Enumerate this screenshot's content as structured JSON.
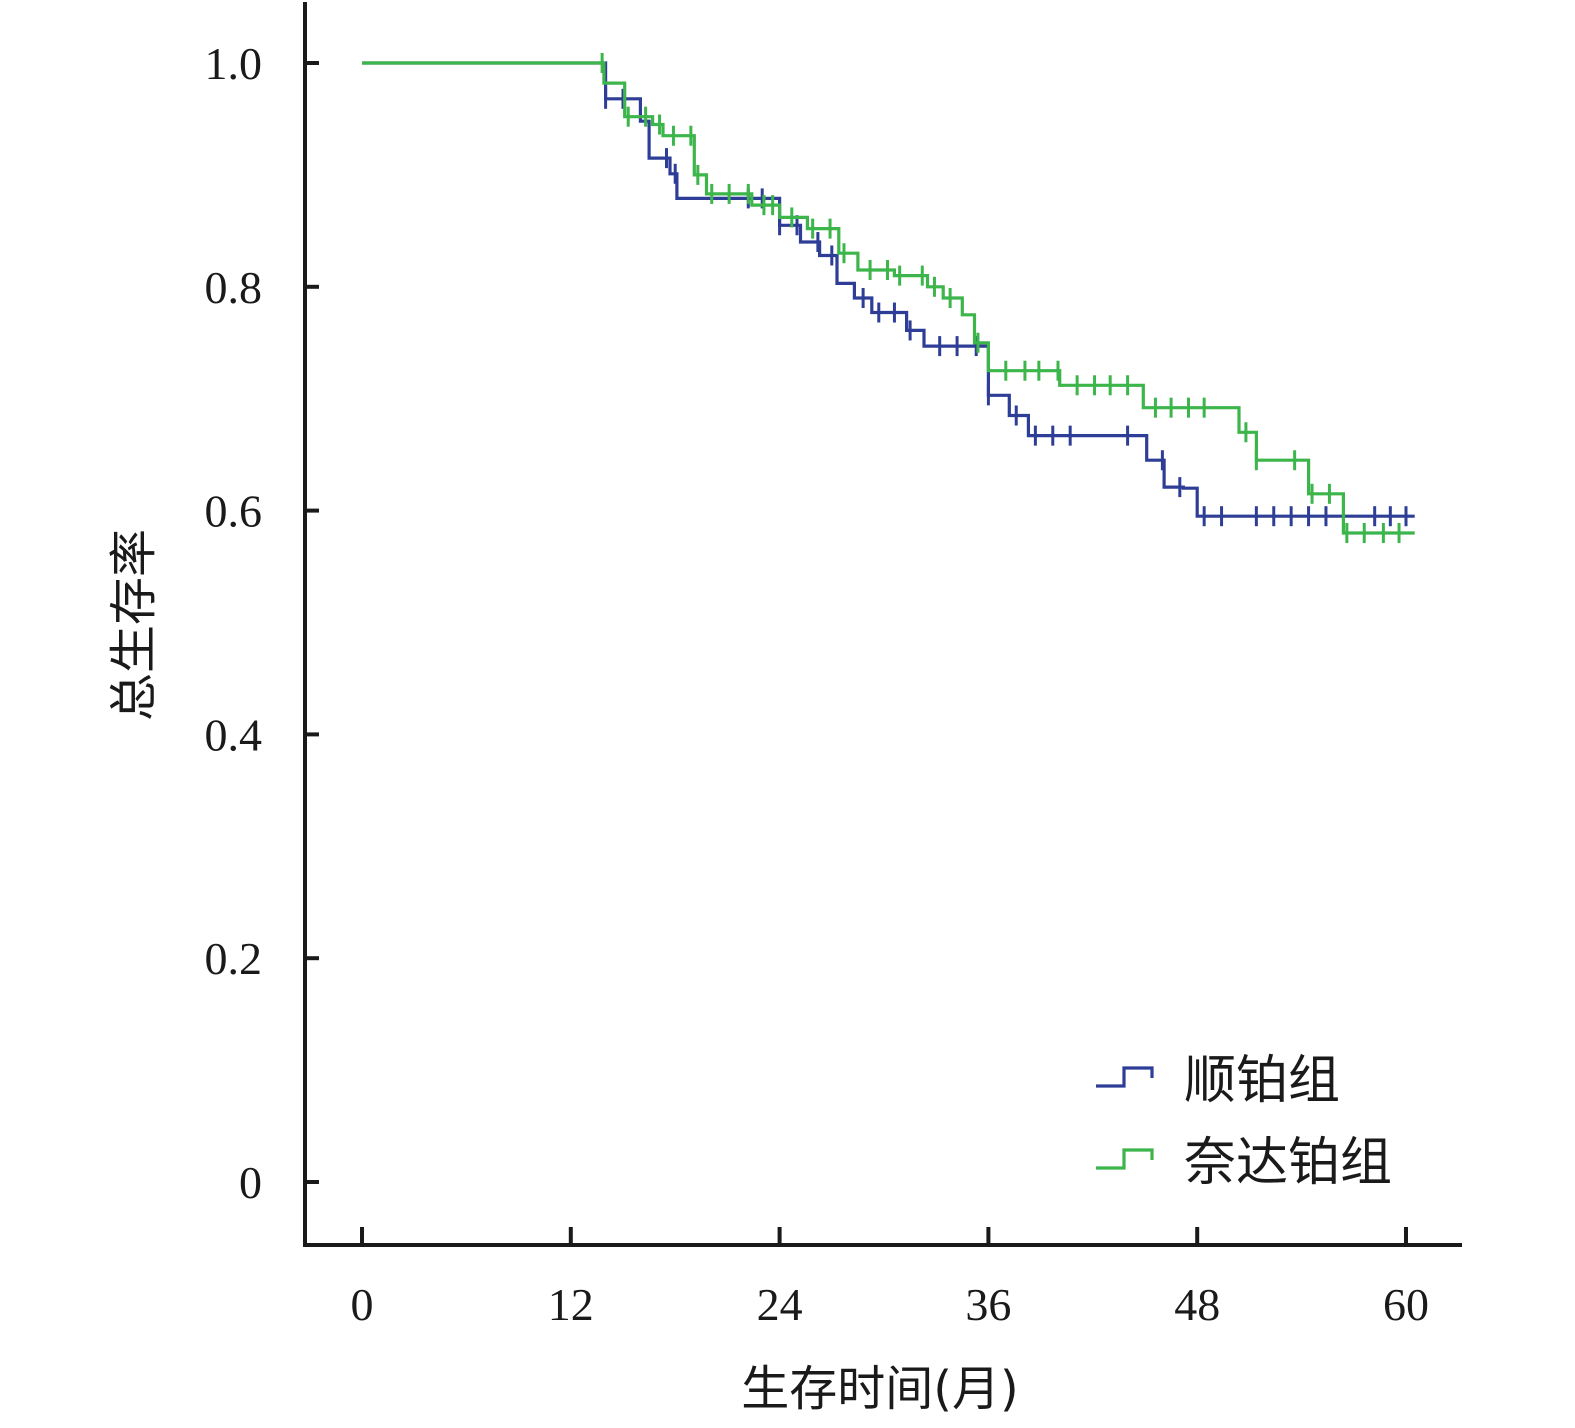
{
  "chart_data": {
    "type": "line",
    "step": true,
    "xlabel": "生存时间(月)",
    "ylabel": "总生存率",
    "xlim": [
      0,
      60
    ],
    "ylim": [
      0,
      1.0
    ],
    "x_ticks": [
      0,
      12,
      24,
      36,
      48,
      60
    ],
    "y_ticks": [
      0,
      0.2,
      0.4,
      0.6,
      0.8,
      1.0
    ],
    "x_tick_labels": [
      "0",
      "12",
      "24",
      "36",
      "48",
      "60"
    ],
    "y_tick_labels": [
      "0",
      "0.2",
      "0.4",
      "0.6",
      "0.8",
      "1.0"
    ],
    "grid": false,
    "legend_position": "bottom-right",
    "series": [
      {
        "name": "顺铂组",
        "color": "#2e3d96",
        "points": [
          [
            0,
            1.0
          ],
          [
            14,
            1.0
          ],
          [
            14,
            0.968
          ],
          [
            16,
            0.968
          ],
          [
            16,
            0.948
          ],
          [
            16.5,
            0.948
          ],
          [
            16.5,
            0.915
          ],
          [
            17.7,
            0.915
          ],
          [
            17.7,
            0.901
          ],
          [
            18.1,
            0.901
          ],
          [
            18.1,
            0.879
          ],
          [
            24,
            0.879
          ],
          [
            24,
            0.855
          ],
          [
            25.2,
            0.855
          ],
          [
            25.2,
            0.84
          ],
          [
            26.3,
            0.84
          ],
          [
            26.3,
            0.828
          ],
          [
            27.3,
            0.828
          ],
          [
            27.3,
            0.803
          ],
          [
            28.3,
            0.803
          ],
          [
            28.3,
            0.79
          ],
          [
            29.3,
            0.79
          ],
          [
            29.3,
            0.777
          ],
          [
            31.3,
            0.777
          ],
          [
            31.3,
            0.761
          ],
          [
            32.3,
            0.761
          ],
          [
            32.3,
            0.747
          ],
          [
            36,
            0.747
          ],
          [
            36,
            0.703
          ],
          [
            37.2,
            0.703
          ],
          [
            37.2,
            0.685
          ],
          [
            38.3,
            0.685
          ],
          [
            38.3,
            0.667
          ],
          [
            45.1,
            0.667
          ],
          [
            45.1,
            0.645
          ],
          [
            46.1,
            0.645
          ],
          [
            46.1,
            0.621
          ],
          [
            47.2,
            0.621
          ],
          [
            47.2,
            0.62
          ],
          [
            48,
            0.62
          ],
          [
            48,
            0.595
          ],
          [
            60.5,
            0.595
          ]
        ],
        "censor_x": [
          14,
          15,
          17.5,
          18,
          22.2,
          23,
          24,
          25,
          26.2,
          27,
          28.8,
          29.7,
          30.6,
          31.5,
          33.2,
          34.2,
          35.3,
          36,
          37.6,
          38.7,
          39.7,
          40.7,
          44,
          46,
          47,
          48.4,
          49.4,
          51.4,
          52.4,
          53.4,
          54.4,
          55.4,
          58.2,
          59.1,
          60
        ]
      },
      {
        "name": "奈达铂组",
        "color": "#3cb54a",
        "points": [
          [
            0,
            1.0
          ],
          [
            13.9,
            1.0
          ],
          [
            13.9,
            0.982
          ],
          [
            15.1,
            0.982
          ],
          [
            15.1,
            0.952
          ],
          [
            16.7,
            0.952
          ],
          [
            16.7,
            0.945
          ],
          [
            17.3,
            0.945
          ],
          [
            17.3,
            0.935
          ],
          [
            19.1,
            0.935
          ],
          [
            19.1,
            0.9
          ],
          [
            19.8,
            0.9
          ],
          [
            19.8,
            0.883
          ],
          [
            22.4,
            0.883
          ],
          [
            22.4,
            0.873
          ],
          [
            24,
            0.873
          ],
          [
            24,
            0.862
          ],
          [
            25.6,
            0.862
          ],
          [
            25.6,
            0.852
          ],
          [
            27.4,
            0.852
          ],
          [
            27.4,
            0.83
          ],
          [
            28.5,
            0.83
          ],
          [
            28.5,
            0.815
          ],
          [
            30.6,
            0.815
          ],
          [
            30.6,
            0.81
          ],
          [
            32.5,
            0.81
          ],
          [
            32.5,
            0.8
          ],
          [
            33.4,
            0.8
          ],
          [
            33.4,
            0.79
          ],
          [
            34.5,
            0.79
          ],
          [
            34.5,
            0.775
          ],
          [
            35.2,
            0.775
          ],
          [
            35.2,
            0.75
          ],
          [
            36,
            0.75
          ],
          [
            36,
            0.725
          ],
          [
            40.1,
            0.725
          ],
          [
            40.1,
            0.712
          ],
          [
            44.9,
            0.712
          ],
          [
            44.9,
            0.692
          ],
          [
            50.4,
            0.692
          ],
          [
            50.4,
            0.67
          ],
          [
            51.4,
            0.67
          ],
          [
            51.4,
            0.645
          ],
          [
            54.4,
            0.645
          ],
          [
            54.4,
            0.615
          ],
          [
            56.4,
            0.615
          ],
          [
            56.4,
            0.58
          ],
          [
            60.5,
            0.58
          ]
        ],
        "censor_x": [
          13.8,
          15.3,
          16.3,
          17.1,
          17.9,
          18.9,
          19.3,
          20.1,
          21.1,
          22.2,
          23.1,
          23.6,
          24.7,
          25.9,
          26.9,
          27.7,
          29.2,
          30.2,
          30.9,
          32.2,
          32.9,
          33.8,
          35.4,
          37,
          38.1,
          38.9,
          40,
          41.1,
          42.1,
          43,
          44,
          45.6,
          46.5,
          47.5,
          48.4,
          50.8,
          51.4,
          53.6,
          54.6,
          55.6,
          56.6,
          57.6,
          58.7,
          59.6
        ]
      }
    ]
  }
}
